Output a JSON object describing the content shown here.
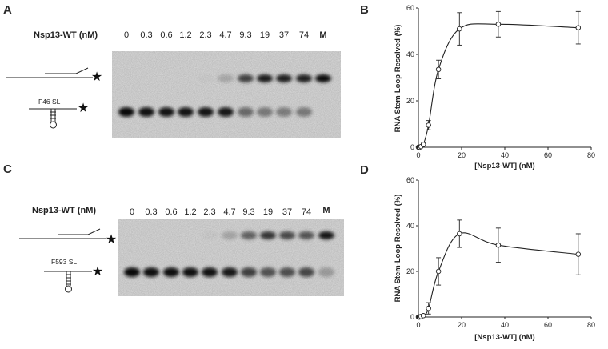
{
  "panels": {
    "A": "A",
    "B": "B",
    "C": "C",
    "D": "D"
  },
  "gels": [
    {
      "id": "top",
      "label_panel": "A",
      "title": "Nsp13-WT (nM)",
      "lanes": [
        "0",
        "0.3",
        "0.6",
        "1.2",
        "2.3",
        "4.7",
        "9.3",
        "19",
        "37",
        "74"
      ],
      "marker": "M",
      "substrate": "F46 SL",
      "upper_band": [
        0,
        0,
        0,
        0,
        0.02,
        0.18,
        0.72,
        0.92,
        0.9,
        0.9,
        1.0
      ],
      "lower_band": [
        1.0,
        0.96,
        0.95,
        0.94,
        0.94,
        0.92,
        0.5,
        0.42,
        0.4,
        0.42,
        0
      ]
    },
    {
      "id": "bottom",
      "label_panel": "C",
      "title": "Nsp13-WT (nM)",
      "lanes": [
        "0",
        "0.3",
        "0.6",
        "1.2",
        "2.3",
        "4.7",
        "9.3",
        "19",
        "37",
        "74"
      ],
      "marker": "M",
      "substrate": "F593 SL",
      "upper_band": [
        0,
        0,
        0,
        0,
        0.03,
        0.2,
        0.55,
        0.78,
        0.68,
        0.62,
        0.95
      ],
      "lower_band": [
        1.0,
        0.97,
        0.97,
        0.96,
        0.95,
        0.92,
        0.72,
        0.62,
        0.64,
        0.68,
        0.25
      ]
    }
  ],
  "chart_data": [
    {
      "panel": "B",
      "type": "scatter",
      "xlabel": "[Nsp13-WT] (nM)",
      "ylabel": "RNA Stem-Loop Resolved (%)",
      "xlim": [
        0,
        80
      ],
      "ylim": [
        0,
        60
      ],
      "xticks": [
        0,
        20,
        40,
        60,
        80
      ],
      "yticks": [
        0,
        20,
        40,
        60
      ],
      "x": [
        0,
        0.3,
        0.6,
        1.2,
        2.3,
        4.7,
        9.3,
        19,
        37,
        74
      ],
      "y": [
        0,
        0,
        0,
        0.3,
        1.2,
        9.5,
        33.5,
        51,
        53,
        51.5
      ],
      "err": [
        0,
        0,
        0,
        0.3,
        0.6,
        2,
        4,
        7,
        5.5,
        7
      ]
    },
    {
      "panel": "D",
      "type": "scatter",
      "xlabel": "[Nsp13-WT]  (nM)",
      "ylabel": "RNA Stem-Loop Resolved (%)",
      "xlim": [
        0,
        80
      ],
      "ylim": [
        0,
        60
      ],
      "xticks": [
        0,
        20,
        40,
        60,
        80
      ],
      "yticks": [
        0,
        20,
        40,
        60
      ],
      "x": [
        0,
        0.3,
        0.6,
        1.2,
        2.3,
        4.7,
        9.3,
        19,
        37,
        74
      ],
      "y": [
        0,
        0,
        0,
        0.2,
        0.6,
        3.8,
        20,
        36.5,
        31.5,
        27.5
      ],
      "err": [
        0,
        0,
        0,
        0.3,
        0.5,
        2.5,
        6,
        6,
        7.5,
        9
      ]
    }
  ]
}
